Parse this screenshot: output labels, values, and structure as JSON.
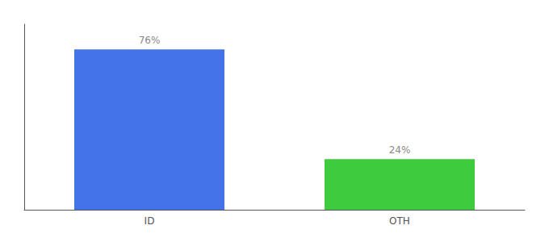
{
  "chart_data": {
    "type": "bar",
    "categories": [
      "ID",
      "OTH"
    ],
    "values": [
      76,
      24
    ],
    "value_labels": [
      "76%",
      "24%"
    ],
    "colors": [
      "#4472e8",
      "#3ecb3e"
    ],
    "ylim": [
      0,
      88
    ],
    "yticks": [],
    "tick_labels": "x",
    "grid": false,
    "data_labels": true
  }
}
